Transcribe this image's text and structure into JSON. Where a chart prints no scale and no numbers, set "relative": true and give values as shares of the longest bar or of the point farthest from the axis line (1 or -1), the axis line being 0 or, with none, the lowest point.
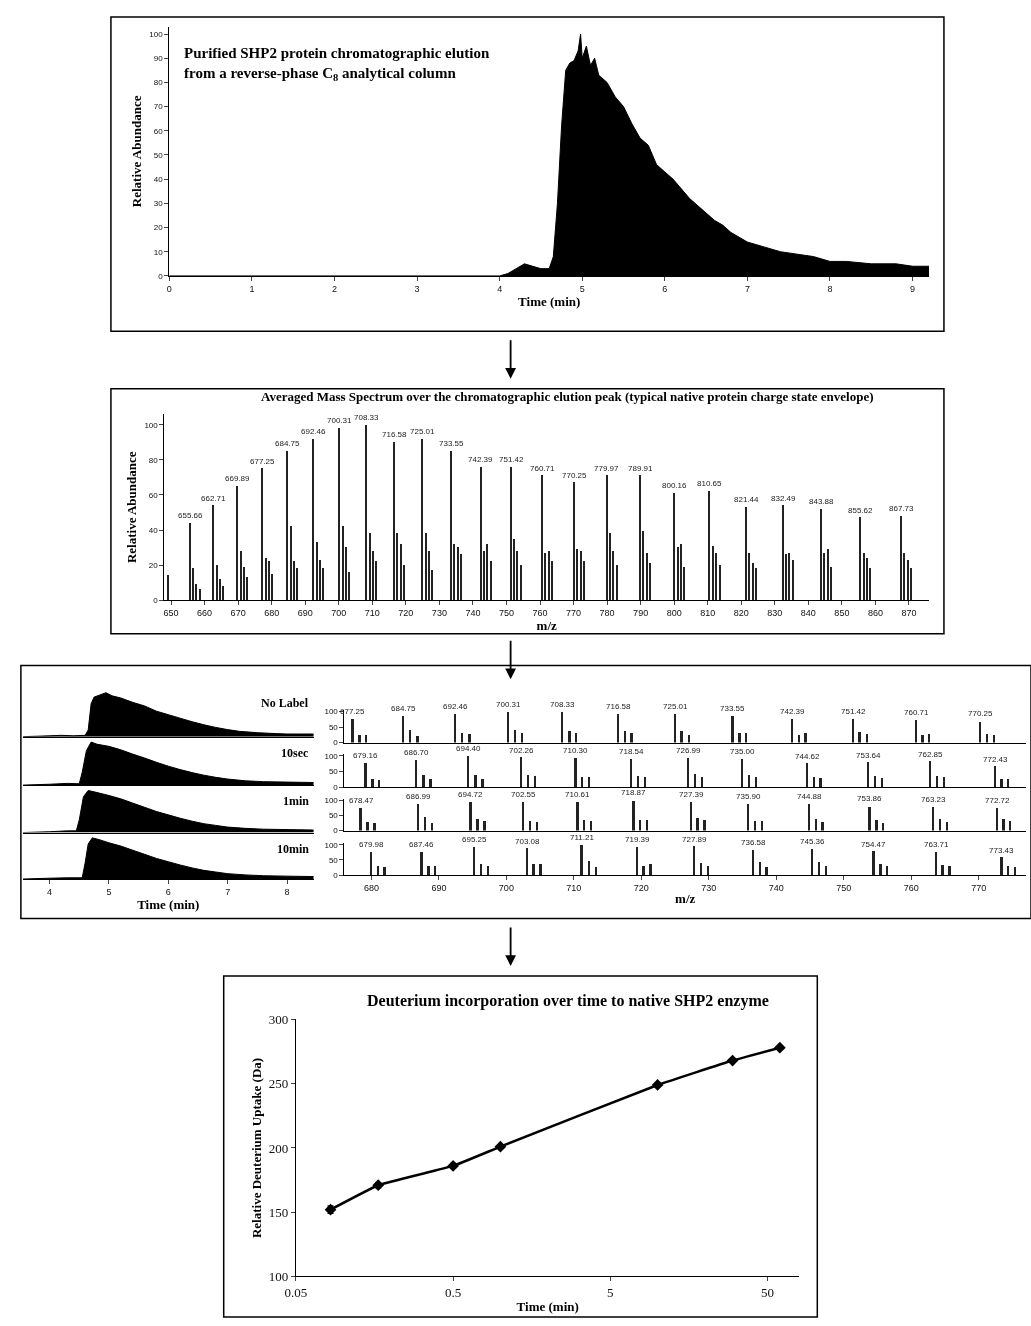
{
  "chart_data": [
    {
      "type": "area",
      "title": "Purified SHP2 protein chromatographic elution\nfrom a reverse-phase C$_{8}$ analytical column",
      "xlabel": "Time (min)",
      "ylabel": "Relative Abundance",
      "color": "#000000",
      "x": [
        0,
        4.0,
        4.1,
        4.2,
        4.3,
        4.4,
        4.5,
        4.6,
        4.65,
        4.7,
        4.75,
        4.8,
        4.85,
        4.9,
        4.95,
        4.98,
        5.0,
        5.05,
        5.1,
        5.15,
        5.2,
        5.3,
        5.4,
        5.5,
        5.6,
        5.7,
        5.8,
        5.9,
        6.0,
        6.1,
        6.2,
        6.3,
        6.4,
        6.5,
        6.6,
        6.7,
        6.8,
        6.9,
        7.0,
        7.2,
        7.4,
        7.6,
        7.8,
        8.0,
        8.2,
        8.5,
        8.8,
        9.0,
        9.2
      ],
      "values": [
        0,
        0,
        1,
        3,
        5,
        4,
        3,
        3,
        8,
        30,
        62,
        85,
        88,
        89,
        93,
        100,
        90,
        95,
        87,
        90,
        83,
        80,
        74,
        70,
        63,
        57,
        54,
        46,
        43,
        40,
        36,
        32,
        29,
        26,
        23,
        21,
        18,
        16,
        14,
        12,
        10,
        9,
        8,
        6,
        6,
        5,
        5,
        4,
        4
      ],
      "xlim": [
        0,
        9.2
      ],
      "xticks": [
        0,
        1,
        2,
        3,
        4,
        5,
        6,
        7,
        8,
        9
      ],
      "ylim": [
        0,
        103
      ],
      "yticks": [
        0,
        10,
        20,
        30,
        40,
        50,
        60,
        70,
        80,
        90,
        100
      ]
    },
    {
      "type": "bar",
      "title": "Averaged Mass Spectrum over the chromatographic elution peak (typical native protein charge state envelope)",
      "xlabel": "m/z",
      "ylabel": "Relative Abundance",
      "color": "#222222",
      "x": [
        649.3,
        655.66,
        656.7,
        657.7,
        658.7,
        662.71,
        663.7,
        664.7,
        665.7,
        669.89,
        670.9,
        671.9,
        672.9,
        677.25,
        678.3,
        679.3,
        680.3,
        684.75,
        685.8,
        686.8,
        687.8,
        692.46,
        693.5,
        694.5,
        695.5,
        700.31,
        701.3,
        702.3,
        703.3,
        708.33,
        709.3,
        710.3,
        711.3,
        716.58,
        717.6,
        718.6,
        719.6,
        725.01,
        726.0,
        727.0,
        728.0,
        733.55,
        734.6,
        735.6,
        736.6,
        742.39,
        743.4,
        744.4,
        745.4,
        751.42,
        752.4,
        753.4,
        754.4,
        760.71,
        761.7,
        762.7,
        763.7,
        770.25,
        771.3,
        772.3,
        773.3,
        779.97,
        781.0,
        782.0,
        783.0,
        789.91,
        790.9,
        791.9,
        792.9,
        800.16,
        801.2,
        802.2,
        803.2,
        810.65,
        811.7,
        812.7,
        813.7,
        821.44,
        822.5,
        823.5,
        824.5,
        832.49,
        833.5,
        834.5,
        835.5,
        843.88,
        844.9,
        845.9,
        846.9,
        855.62,
        856.6,
        857.6,
        858.6,
        867.73,
        868.7,
        869.7,
        870.7
      ],
      "values": [
        14,
        44,
        18,
        9,
        6,
        54,
        20,
        12,
        8,
        65,
        28,
        19,
        13,
        75,
        24,
        22,
        15,
        85,
        42,
        22,
        18,
        92,
        33,
        23,
        18,
        98,
        42,
        30,
        16,
        100,
        38,
        28,
        22,
        90,
        38,
        32,
        20,
        92,
        38,
        28,
        17,
        85,
        32,
        30,
        26,
        76,
        28,
        32,
        22,
        76,
        35,
        28,
        20,
        71,
        27,
        28,
        22,
        67,
        29,
        28,
        22,
        71,
        38,
        28,
        20,
        71,
        39,
        27,
        21,
        61,
        30,
        32,
        19,
        62,
        31,
        27,
        20,
        53,
        27,
        21,
        18,
        54,
        26,
        27,
        23,
        52,
        27,
        29,
        19,
        47,
        27,
        24,
        18,
        48,
        27,
        23,
        18
      ],
      "annotations": [
        {
          "text": "655.66",
          "x": 655.66,
          "y": 44
        },
        {
          "text": "662.71",
          "x": 662.71,
          "y": 54
        },
        {
          "text": "669.89",
          "x": 669.89,
          "y": 65
        },
        {
          "text": "677.25",
          "x": 677.25,
          "y": 75
        },
        {
          "text": "684.75",
          "x": 684.75,
          "y": 85
        },
        {
          "text": "692.46",
          "x": 692.46,
          "y": 92
        },
        {
          "text": "700.31",
          "x": 700.31,
          "y": 98
        },
        {
          "text": "708.33",
          "x": 708.33,
          "y": 100
        },
        {
          "text": "716.58",
          "x": 716.58,
          "y": 90
        },
        {
          "text": "725.01",
          "x": 725.01,
          "y": 92
        },
        {
          "text": "733.55",
          "x": 733.55,
          "y": 85
        },
        {
          "text": "742.39",
          "x": 742.39,
          "y": 76
        },
        {
          "text": "751.42",
          "x": 751.42,
          "y": 76
        },
        {
          "text": "760.71",
          "x": 760.71,
          "y": 71
        },
        {
          "text": "770.25",
          "x": 770.25,
          "y": 67
        },
        {
          "text": "779.97",
          "x": 779.97,
          "y": 71
        },
        {
          "text": "789.91",
          "x": 789.91,
          "y": 71
        },
        {
          "text": "800.16",
          "x": 800.16,
          "y": 61
        },
        {
          "text": "810.65",
          "x": 810.65,
          "y": 62
        },
        {
          "text": "821.44",
          "x": 821.44,
          "y": 53
        },
        {
          "text": "832.49",
          "x": 832.49,
          "y": 54
        },
        {
          "text": "843.88",
          "x": 843.88,
          "y": 52
        },
        {
          "text": "855.62",
          "x": 855.62,
          "y": 47
        },
        {
          "text": "867.73",
          "x": 867.73,
          "y": 48
        }
      ],
      "xlim": [
        648,
        876
      ],
      "xticks": [
        650,
        660,
        670,
        680,
        690,
        700,
        710,
        720,
        730,
        740,
        750,
        760,
        770,
        780,
        790,
        800,
        810,
        820,
        830,
        840,
        850,
        860,
        870
      ],
      "ylim": [
        0,
        106
      ],
      "yticks": [
        0,
        20,
        40,
        60,
        80,
        100
      ]
    },
    {
      "type": "area",
      "relative": true,
      "title": "No Label",
      "color": "#000000",
      "tick_labels": false,
      "xlim": [
        3.55,
        8.45
      ],
      "xticks": [
        4,
        5,
        6,
        7,
        8
      ],
      "x": [
        3.55,
        3.8,
        4.0,
        4.2,
        4.4,
        4.6,
        4.65,
        4.7,
        4.75,
        4.85,
        4.95,
        5.05,
        5.2,
        5.4,
        5.6,
        5.8,
        6.0,
        6.2,
        6.4,
        6.6,
        6.8,
        7.0,
        7.2,
        7.5,
        7.8,
        8.0,
        8.2,
        8.45
      ],
      "values": [
        0,
        0.01,
        0.02,
        0.03,
        0.02,
        0.03,
        0.15,
        0.75,
        0.9,
        0.95,
        1,
        0.93,
        0.88,
        0.78,
        0.7,
        0.58,
        0.5,
        0.42,
        0.34,
        0.27,
        0.21,
        0.16,
        0.12,
        0.09,
        0.07,
        0.06,
        0.06,
        0.06
      ]
    },
    {
      "type": "area",
      "relative": true,
      "title": "10sec",
      "color": "#000000",
      "tick_labels": false,
      "xlim": [
        3.55,
        8.45
      ],
      "xticks": [
        4,
        5,
        6,
        7,
        8
      ],
      "x": [
        3.55,
        4.0,
        4.3,
        4.5,
        4.55,
        4.62,
        4.7,
        4.8,
        5.0,
        5.2,
        5.4,
        5.6,
        5.8,
        6.0,
        6.2,
        6.4,
        6.6,
        6.8,
        7.0,
        7.3,
        7.6,
        8.0,
        8.45
      ],
      "values": [
        0,
        0.02,
        0.04,
        0.03,
        0.3,
        0.8,
        1,
        0.95,
        0.9,
        0.82,
        0.72,
        0.63,
        0.53,
        0.44,
        0.36,
        0.29,
        0.23,
        0.18,
        0.14,
        0.1,
        0.08,
        0.07,
        0.06
      ]
    },
    {
      "type": "area",
      "relative": true,
      "title": "1min",
      "color": "#000000",
      "tick_labels": false,
      "xlim": [
        3.55,
        8.45
      ],
      "xticks": [
        4,
        5,
        6,
        7,
        8
      ],
      "x": [
        3.55,
        4.0,
        4.3,
        4.45,
        4.5,
        4.57,
        4.65,
        4.8,
        5.0,
        5.2,
        5.4,
        5.6,
        5.8,
        6.0,
        6.2,
        6.4,
        6.6,
        6.8,
        7.0,
        7.3,
        7.6,
        8.0,
        8.45
      ],
      "values": [
        0,
        0.02,
        0.04,
        0.04,
        0.3,
        0.85,
        1,
        0.95,
        0.88,
        0.8,
        0.7,
        0.6,
        0.5,
        0.42,
        0.34,
        0.27,
        0.21,
        0.17,
        0.13,
        0.1,
        0.08,
        0.07,
        0.06
      ]
    },
    {
      "type": "area",
      "relative": true,
      "title": "10min",
      "xlabel": "Time (min)",
      "color": "#000000",
      "tick_labels": "x",
      "xlim": [
        3.55,
        8.45
      ],
      "xticks": [
        4,
        5,
        6,
        7,
        8
      ],
      "x": [
        3.55,
        4.0,
        4.3,
        4.55,
        4.6,
        4.65,
        4.72,
        4.85,
        5.0,
        5.2,
        5.4,
        5.6,
        5.8,
        6.0,
        6.2,
        6.4,
        6.6,
        6.8,
        7.0,
        7.3,
        7.6,
        8.0,
        8.45
      ],
      "values": [
        0,
        0.02,
        0.03,
        0.03,
        0.4,
        0.85,
        1,
        0.95,
        0.88,
        0.8,
        0.7,
        0.6,
        0.5,
        0.42,
        0.34,
        0.27,
        0.21,
        0.17,
        0.13,
        0.1,
        0.08,
        0.07,
        0.06
      ]
    },
    {
      "type": "bar",
      "color": "#222222",
      "tick_labels": "y",
      "xlim": [
        676,
        777
      ],
      "xticks": [
        680,
        690,
        700,
        710,
        720,
        730,
        740,
        750,
        760,
        770
      ],
      "ylim": [
        0,
        105
      ],
      "yticks": [
        0,
        50,
        100
      ],
      "x": [
        677.25,
        678.3,
        679.3,
        684.75,
        685.8,
        686.9,
        692.46,
        693.5,
        694.6,
        700.31,
        701.3,
        702.4,
        708.33,
        709.4,
        710.4,
        716.58,
        717.6,
        718.6,
        725.01,
        726.0,
        727.1,
        733.55,
        734.6,
        735.6,
        742.39,
        743.4,
        744.4,
        751.42,
        752.4,
        753.5,
        760.71,
        761.7,
        762.7,
        770.25,
        771.3,
        772.3
      ],
      "values": [
        76,
        25,
        24,
        85,
        40,
        22,
        92,
        32,
        28,
        99,
        40,
        32,
        100,
        38,
        30,
        92,
        38,
        32,
        92,
        38,
        25,
        87,
        32,
        30,
        76,
        26,
        30,
        77,
        35,
        28,
        72,
        26,
        28,
        68,
        28,
        26
      ],
      "annotations": [
        {
          "text": "677.25",
          "x": 677.25,
          "y": 76
        },
        {
          "text": "684.75",
          "x": 684.75,
          "y": 85
        },
        {
          "text": "692.46",
          "x": 692.46,
          "y": 92
        },
        {
          "text": "700.31",
          "x": 700.31,
          "y": 99
        },
        {
          "text": "708.33",
          "x": 708.33,
          "y": 100
        },
        {
          "text": "716.58",
          "x": 716.58,
          "y": 92
        },
        {
          "text": "725.01",
          "x": 725.01,
          "y": 92
        },
        {
          "text": "733.55",
          "x": 733.55,
          "y": 87
        },
        {
          "text": "742.39",
          "x": 742.39,
          "y": 76
        },
        {
          "text": "751.42",
          "x": 751.42,
          "y": 77
        },
        {
          "text": "760.71",
          "x": 760.71,
          "y": 72
        },
        {
          "text": "770.25",
          "x": 770.25,
          "y": 68
        }
      ]
    },
    {
      "type": "bar",
      "color": "#222222",
      "tick_labels": "y",
      "xlim": [
        676,
        777
      ],
      "xticks": [
        680,
        690,
        700,
        710,
        720,
        730,
        740,
        750,
        760,
        770
      ],
      "ylim": [
        0,
        105
      ],
      "yticks": [
        0,
        50,
        100
      ],
      "x": [
        679.16,
        680.2,
        681.2,
        686.7,
        687.8,
        688.8,
        694.4,
        695.5,
        696.5,
        702.26,
        703.3,
        704.3,
        710.3,
        711.3,
        712.3,
        718.54,
        719.6,
        720.6,
        726.99,
        728.0,
        729.0,
        735.0,
        736.0,
        737.0,
        744.62,
        745.6,
        746.6,
        753.64,
        754.7,
        755.7,
        762.85,
        763.9,
        764.9,
        772.43,
        773.4,
        774.4
      ],
      "values": [
        77,
        26,
        22,
        87,
        38,
        24,
        100,
        38,
        26,
        94,
        36,
        34,
        92,
        32,
        30,
        90,
        35,
        32,
        92,
        42,
        30,
        90,
        38,
        32,
        75,
        32,
        28,
        79,
        35,
        28,
        82,
        34,
        30,
        66,
        26,
        24
      ],
      "annotations": [
        {
          "text": "679.16",
          "x": 679.16,
          "y": 77
        },
        {
          "text": "686.70",
          "x": 686.7,
          "y": 87
        },
        {
          "text": "694.40",
          "x": 694.4,
          "y": 100
        },
        {
          "text": "702.26",
          "x": 702.26,
          "y": 94
        },
        {
          "text": "710.30",
          "x": 710.3,
          "y": 92
        },
        {
          "text": "718.54",
          "x": 718.54,
          "y": 90
        },
        {
          "text": "726.99",
          "x": 726.99,
          "y": 92
        },
        {
          "text": "735.00",
          "x": 735.0,
          "y": 90
        },
        {
          "text": "744.62",
          "x": 744.62,
          "y": 75
        },
        {
          "text": "753.64",
          "x": 753.64,
          "y": 79
        },
        {
          "text": "762.85",
          "x": 762.85,
          "y": 82
        },
        {
          "text": "772.43",
          "x": 772.43,
          "y": 66
        }
      ]
    },
    {
      "type": "bar",
      "color": "#222222",
      "tick_labels": "y",
      "xlim": [
        676,
        777
      ],
      "xticks": [
        680,
        690,
        700,
        710,
        720,
        730,
        740,
        750,
        760,
        770
      ],
      "ylim": [
        0,
        105
      ],
      "yticks": [
        0,
        50,
        100
      ],
      "x": [
        678.47,
        679.5,
        680.5,
        686.99,
        688.0,
        689.0,
        694.72,
        695.8,
        696.8,
        702.55,
        703.6,
        704.6,
        710.61,
        711.6,
        712.6,
        718.87,
        719.9,
        720.9,
        727.39,
        728.4,
        729.4,
        735.9,
        736.9,
        737.9,
        744.88,
        745.9,
        746.9,
        753.86,
        754.9,
        755.9,
        763.23,
        764.3,
        765.3,
        772.72,
        773.7,
        774.7
      ],
      "values": [
        74,
        28,
        26,
        89,
        44,
        24,
        96,
        40,
        32,
        96,
        32,
        30,
        96,
        36,
        32,
        100,
        36,
        34,
        94,
        42,
        34,
        89,
        32,
        32,
        87,
        40,
        28,
        80,
        36,
        26,
        77,
        38,
        30,
        76,
        40,
        32
      ],
      "annotations": [
        {
          "text": "678.47",
          "x": 678.47,
          "y": 74
        },
        {
          "text": "686.99",
          "x": 686.99,
          "y": 89
        },
        {
          "text": "694.72",
          "x": 694.72,
          "y": 96
        },
        {
          "text": "702.55",
          "x": 702.55,
          "y": 96
        },
        {
          "text": "710.61",
          "x": 710.61,
          "y": 96
        },
        {
          "text": "718.87",
          "x": 718.87,
          "y": 100
        },
        {
          "text": "727.39",
          "x": 727.39,
          "y": 94
        },
        {
          "text": "735.90",
          "x": 735.9,
          "y": 89
        },
        {
          "text": "744.88",
          "x": 744.88,
          "y": 87
        },
        {
          "text": "753.86",
          "x": 753.86,
          "y": 80
        },
        {
          "text": "763.23",
          "x": 763.23,
          "y": 77
        },
        {
          "text": "772.72",
          "x": 772.72,
          "y": 76
        }
      ]
    },
    {
      "type": "bar",
      "xlabel": "m/z",
      "color": "#222222",
      "xlim": [
        676,
        777
      ],
      "xticks": [
        680,
        690,
        700,
        710,
        720,
        730,
        740,
        750,
        760,
        770
      ],
      "ylim": [
        0,
        105
      ],
      "yticks": [
        0,
        50,
        100
      ],
      "x": [
        679.98,
        681.0,
        682.0,
        687.46,
        688.5,
        689.5,
        695.25,
        696.3,
        697.3,
        703.08,
        704.1,
        705.1,
        711.21,
        712.3,
        713.3,
        719.39,
        720.4,
        721.4,
        727.89,
        728.9,
        729.9,
        736.58,
        737.6,
        738.6,
        745.36,
        746.4,
        747.4,
        754.47,
        755.5,
        756.5,
        763.71,
        764.7,
        765.7,
        773.43,
        774.4,
        775.4
      ],
      "values": [
        75,
        30,
        24,
        76,
        30,
        28,
        92,
        36,
        28,
        87,
        34,
        36,
        100,
        44,
        26,
        92,
        30,
        34,
        94,
        38,
        28,
        83,
        42,
        26,
        85,
        42,
        30,
        77,
        36,
        30,
        75,
        32,
        28,
        58,
        28,
        24
      ],
      "annotations": [
        {
          "text": "679.98",
          "x": 679.98,
          "y": 75
        },
        {
          "text": "687.46",
          "x": 687.46,
          "y": 76
        },
        {
          "text": "695.25",
          "x": 695.25,
          "y": 92
        },
        {
          "text": "703.08",
          "x": 703.08,
          "y": 87
        },
        {
          "text": "711.21",
          "x": 711.21,
          "y": 100
        },
        {
          "text": "719.39",
          "x": 719.39,
          "y": 92
        },
        {
          "text": "727.89",
          "x": 727.89,
          "y": 94
        },
        {
          "text": "736.58",
          "x": 736.58,
          "y": 83
        },
        {
          "text": "745.36",
          "x": 745.36,
          "y": 85
        },
        {
          "text": "754.47",
          "x": 754.47,
          "y": 77
        },
        {
          "text": "763.71",
          "x": 763.71,
          "y": 75
        },
        {
          "text": "773.43",
          "x": 773.43,
          "y": 58
        }
      ]
    },
    {
      "type": "line",
      "title": "Deuterium incorporation over time to native SHP2 enzyme",
      "xlabel": "Time (min)",
      "ylabel": "Relative Deuterium Uptake (Da)",
      "color": "#000000",
      "marker": "diamond",
      "line_style": "solid",
      "log": "x",
      "x": [
        0.083,
        0.167,
        0.5,
        1,
        10,
        30,
        60
      ],
      "values": [
        152,
        171,
        186,
        201,
        249,
        268,
        278
      ],
      "errors": [
        3,
        2,
        2,
        1,
        1,
        1,
        1
      ],
      "xlim": [
        0.05,
        80
      ],
      "xticks": [
        0.05,
        0.5,
        5,
        50
      ],
      "ylim": [
        100,
        300
      ],
      "yticks": [
        100,
        150,
        200,
        250,
        300
      ]
    }
  ]
}
